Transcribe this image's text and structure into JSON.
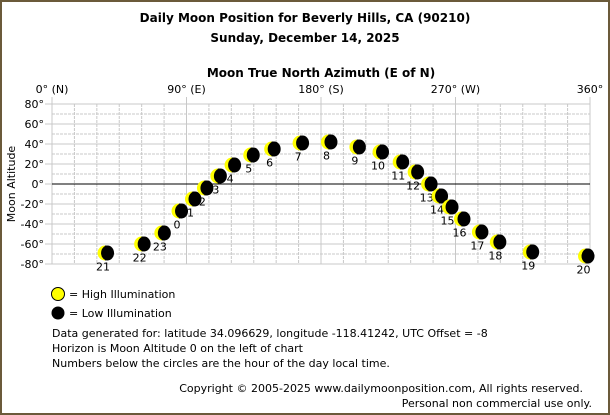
{
  "chart_data": {
    "type": "scatter",
    "title": "Daily Moon Position for Beverly Hills, CA (90210)",
    "subtitle": "Sunday, December 14, 2025",
    "xlabel": "Moon True North Azimuth (E of N)",
    "ylabel": "Moon Altitude",
    "xlim": [
      0,
      360
    ],
    "ylim": [
      -80,
      80
    ],
    "grid": true,
    "x_ticks": [
      {
        "value": 0,
        "label": "0° (N)"
      },
      {
        "value": 90,
        "label": "90° (E)"
      },
      {
        "value": 180,
        "label": "180° (S)"
      },
      {
        "value": 270,
        "label": "270° (W)"
      },
      {
        "value": 360,
        "label": "360°"
      }
    ],
    "y_ticks": [
      {
        "value": 80,
        "label": "80°"
      },
      {
        "value": 60,
        "label": "60°"
      },
      {
        "value": 40,
        "label": "40°"
      },
      {
        "value": 20,
        "label": "20°"
      },
      {
        "value": 0,
        "label": "0°"
      },
      {
        "value": -20,
        "label": "-20°"
      },
      {
        "value": -40,
        "label": "-40°"
      },
      {
        "value": -60,
        "label": "-60°"
      },
      {
        "value": -80,
        "label": "-80°"
      }
    ],
    "points": [
      {
        "hour": "21",
        "azimuth": 35.5,
        "altitude": -69
      },
      {
        "hour": "22",
        "azimuth": 60,
        "altitude": -60
      },
      {
        "hour": "23",
        "azimuth": 73.5,
        "altitude": -49
      },
      {
        "hour": "0",
        "azimuth": 85,
        "altitude": -27
      },
      {
        "hour": "1",
        "azimuth": 94,
        "altitude": -15
      },
      {
        "hour": "2",
        "azimuth": 102,
        "altitude": -4
      },
      {
        "hour": "3",
        "azimuth": 111,
        "altitude": 8
      },
      {
        "hour": "4",
        "azimuth": 120.5,
        "altitude": 19
      },
      {
        "hour": "5",
        "azimuth": 133,
        "altitude": 29
      },
      {
        "hour": "6",
        "azimuth": 147,
        "altitude": 35
      },
      {
        "hour": "7",
        "azimuth": 166,
        "altitude": 41
      },
      {
        "hour": "8",
        "azimuth": 185,
        "altitude": 42
      },
      {
        "hour": "9",
        "azimuth": 204,
        "altitude": 37
      },
      {
        "hour": "10",
        "azimuth": 219.5,
        "altitude": 32
      },
      {
        "hour": "11",
        "azimuth": 233,
        "altitude": 22
      },
      {
        "hour": "12",
        "azimuth": 243,
        "altitude": 12
      },
      {
        "hour": "13",
        "azimuth": 252,
        "altitude": 0
      },
      {
        "hour": "14",
        "azimuth": 259,
        "altitude": -12
      },
      {
        "hour": "15",
        "azimuth": 266,
        "altitude": -23
      },
      {
        "hour": "16",
        "azimuth": 274,
        "altitude": -35
      },
      {
        "hour": "17",
        "azimuth": 286,
        "altitude": -48
      },
      {
        "hour": "18",
        "azimuth": 298,
        "altitude": -58
      },
      {
        "hour": "19",
        "azimuth": 320,
        "altitude": -68
      },
      {
        "hour": "20",
        "azimuth": 357,
        "altitude": -72
      }
    ],
    "legend": [
      {
        "label": "= High Illumination",
        "color": "#ffff00"
      },
      {
        "label": "= Low Illumination",
        "color": "#000000"
      }
    ],
    "legend_placement": "bottom-left"
  },
  "notes": [
    "Data generated for: latitude 34.096629, longitude -118.41242, UTC Offset = -8",
    "Horizon is Moon Altitude 0 on the left of chart",
    "Numbers below the circles are the hour of the day local time."
  ],
  "copyright": "Copyright © 2005-2025 www.dailymoonposition.com, All rights reserved.",
  "usage": "Personal non commercial use only.",
  "colors": {
    "border": "#6b5a3a",
    "grid": "#c8c8c8",
    "moon_lit": "#ffff00",
    "moon_dark": "#000000"
  }
}
